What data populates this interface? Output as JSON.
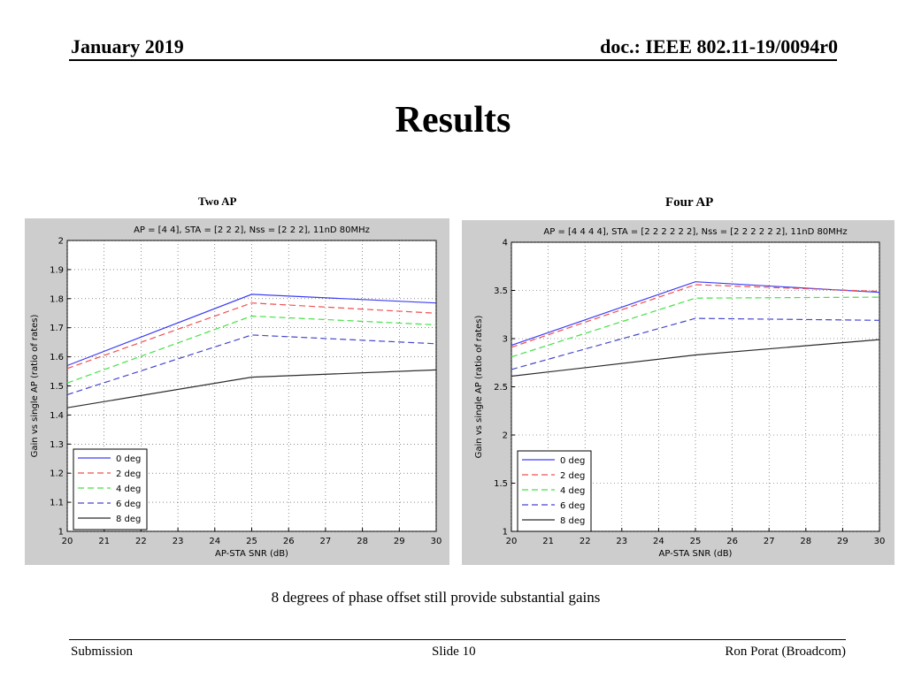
{
  "header": {
    "date": "January 2019",
    "doc": "doc.: IEEE 802.11-19/0094r0"
  },
  "slide_title": "Results",
  "subtitles": {
    "left": "Two AP",
    "right": "Four AP"
  },
  "caption": "8 degrees of phase offset still provide substantial gains",
  "footer": {
    "left": "Submission",
    "center": "Slide 10",
    "right": "Ron Porat (Broadcom)"
  },
  "colors": {
    "0 deg": "#3d3df5",
    "2 deg": "#f05050",
    "4 deg": "#44e244",
    "6 deg": "#4646cf",
    "8 deg": "#2b2b2b"
  },
  "chart_data": [
    {
      "type": "line",
      "title": "AP = [4 4], STA = [2 2 2], Nss = [2 2 2], 11nD 80MHz",
      "xlabel": "AP-STA SNR (dB)",
      "ylabel": "Gain vs single AP (ratio of rates)",
      "x": [
        20,
        25,
        30
      ],
      "xlim": [
        20,
        30
      ],
      "ylim": [
        1,
        2
      ],
      "xticks": [
        "20",
        "21",
        "22",
        "23",
        "24",
        "25",
        "26",
        "27",
        "28",
        "29",
        "30"
      ],
      "yticks": [
        "1",
        "1.1",
        "1.2",
        "1.3",
        "1.4",
        "1.5",
        "1.6",
        "1.7",
        "1.8",
        "1.9",
        "2"
      ],
      "grid": true,
      "legend_position": "bottom-left",
      "series": [
        {
          "name": "0 deg",
          "values": [
            1.57,
            1.815,
            1.785
          ]
        },
        {
          "name": "2 deg",
          "values": [
            1.56,
            1.785,
            1.75
          ]
        },
        {
          "name": "4 deg",
          "values": [
            1.51,
            1.74,
            1.71
          ]
        },
        {
          "name": "6 deg",
          "values": [
            1.47,
            1.675,
            1.645
          ]
        },
        {
          "name": "8 deg",
          "values": [
            1.425,
            1.53,
            1.555
          ]
        }
      ]
    },
    {
      "type": "line",
      "title": "AP = [4 4 4 4], STA = [2 2 2 2 2 2], Nss = [2 2 2 2 2 2], 11nD 80MHz",
      "xlabel": "AP-STA SNR (dB)",
      "ylabel": "Gain vs single AP (ratio of rates)",
      "x": [
        20,
        25,
        30
      ],
      "xlim": [
        20,
        30
      ],
      "ylim": [
        1,
        4
      ],
      "xticks": [
        "20",
        "21",
        "22",
        "23",
        "24",
        "25",
        "26",
        "27",
        "28",
        "29",
        "30"
      ],
      "yticks": [
        "1",
        "1.5",
        "2",
        "2.5",
        "3",
        "3.5",
        "4"
      ],
      "grid": true,
      "legend_position": "bottom-left",
      "series": [
        {
          "name": "0 deg",
          "values": [
            2.93,
            3.59,
            3.48
          ]
        },
        {
          "name": "2 deg",
          "values": [
            2.91,
            3.56,
            3.49
          ]
        },
        {
          "name": "4 deg",
          "values": [
            2.81,
            3.42,
            3.43
          ]
        },
        {
          "name": "6 deg",
          "values": [
            2.68,
            3.21,
            3.19
          ]
        },
        {
          "name": "8 deg",
          "values": [
            2.61,
            2.83,
            2.99
          ]
        }
      ]
    }
  ]
}
